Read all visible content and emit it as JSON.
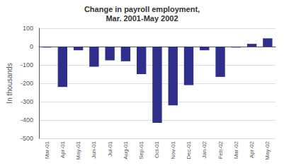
{
  "chart_data": {
    "type": "bar",
    "title": "Change in payroll employment,",
    "subtitle": "Mar. 2001-May 2002",
    "categories": [
      "Mar-01",
      "Apr-01",
      "May-01",
      "Jun-01",
      "Jul-01",
      "Aug-01",
      "Sep-01",
      "Oct-01",
      "Nov-01",
      "Dec-01",
      "Jan-02",
      "Feb-02",
      "Mar-02",
      "Apr-02",
      "May-02"
    ],
    "values": [
      -5,
      -220,
      -20,
      -110,
      -75,
      -80,
      -150,
      -415,
      -320,
      -210,
      -20,
      -165,
      -5,
      15,
      45
    ],
    "color": "#2E2E8B",
    "ylabel": "In thousands",
    "ylim": [
      -500,
      100
    ],
    "yticks": [
      -500,
      -400,
      -300,
      -200,
      -100,
      0,
      100
    ],
    "grid": true
  }
}
